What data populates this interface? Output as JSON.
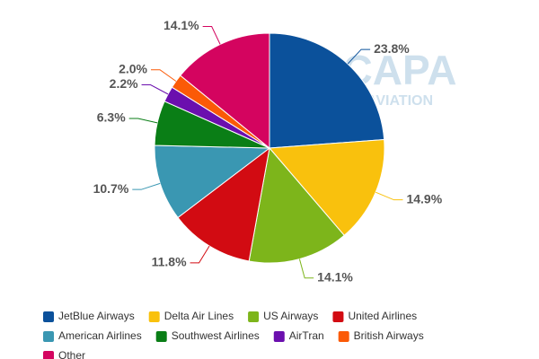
{
  "chart_data": {
    "type": "pie",
    "watermark": [
      "CAPA",
      "AVIATION"
    ],
    "categories": [
      "JetBlue Airways",
      "Delta Air Lines",
      "US Airways",
      "United Airlines",
      "American Airlines",
      "Southwest Airlines",
      "AirTran",
      "British Airways",
      "Other"
    ],
    "values": [
      23.8,
      14.9,
      14.1,
      11.8,
      10.7,
      6.3,
      2.2,
      2.0,
      14.1
    ],
    "value_labels": [
      "23.8%",
      "14.9%",
      "14.1%",
      "11.8%",
      "10.7%",
      "6.3%",
      "2.2%",
      "2.0%",
      "14.1%"
    ],
    "colors": [
      "#0b519b",
      "#f9c10d",
      "#7db51b",
      "#d20b12",
      "#3a97b2",
      "#0a7e16",
      "#6b0fae",
      "#fb5a07",
      "#d4045f"
    ],
    "legend": "bottom"
  }
}
